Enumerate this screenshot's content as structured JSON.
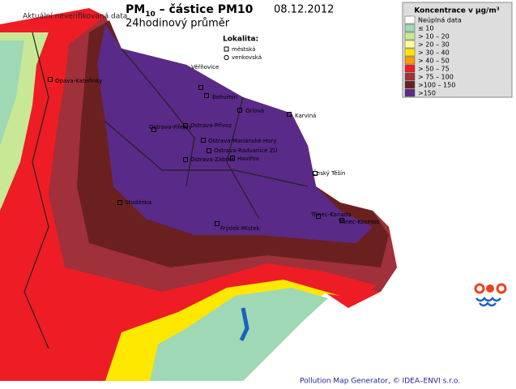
{
  "header": {
    "note": "Aktuální neverifikovaná data",
    "title_prefix": "PM",
    "title_subscript": "10",
    "title_rest": " – částice PM10",
    "date": "08.12.2012",
    "subtitle": "24hodinový průměr"
  },
  "locality": {
    "title": "Lokalita:",
    "items": [
      "městská",
      "venkovská"
    ]
  },
  "legend": {
    "title": "Koncentrace v µg/m³",
    "items": [
      {
        "label": "Neúplná data",
        "color": "#ffffff"
      },
      {
        "label": "≤  10",
        "color": "#9fd8b4"
      },
      {
        "label": "> 10  –  20",
        "color": "#c8e896"
      },
      {
        "label": "> 20  –  30",
        "color": "#fffc9c"
      },
      {
        "label": "> 30  –  40",
        "color": "#ffe800"
      },
      {
        "label": "> 40  –  50",
        "color": "#ff9c00"
      },
      {
        "label": "> 50  –  75",
        "color": "#ee1c24"
      },
      {
        "label": "> 75  – 100",
        "color": "#a0303a"
      },
      {
        "label": ">100  – 150",
        "color": "#6b2020"
      },
      {
        "label": ">150",
        "color": "#5a2a88"
      }
    ]
  },
  "stations": [
    "Opava-Kateřinky",
    "Věřňovice",
    "Bohumín",
    "Orlová",
    "Karviná",
    "Ostrava-Fifejdy",
    "Ostrava-Přívoz",
    "Ostrava-Mariánské Hory",
    "Ostrava-Radvanice ZÚ",
    "Havířov",
    "Ostrava-Zábřeh",
    "Český Těšín",
    "Studénka",
    "Třinec-Kanada",
    "Třinec-Kosmos",
    "Frýdek-Místek"
  ],
  "footer": "Pollution Map Generator, © IDEA–ENVI s.r.o."
}
